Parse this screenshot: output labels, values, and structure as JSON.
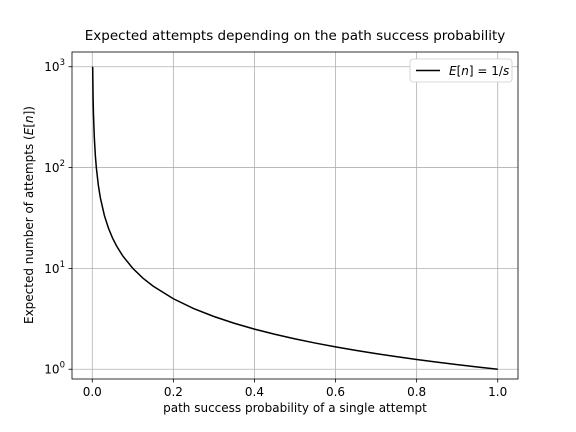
{
  "chart_data": {
    "type": "line",
    "title": "Expected attempts depending on the path success probability",
    "xlabel": "path success probability of a single attempt",
    "ylabel": "Expected number of attempts (E[n])",
    "xlim": [
      -0.05,
      1.05
    ],
    "ylim": [
      0.8,
      1400
    ],
    "yscale": "log",
    "grid": true,
    "legend_position": "upper right",
    "xticks": [
      0.0,
      0.2,
      0.4,
      0.6,
      0.8,
      1.0
    ],
    "xtick_labels": [
      "0.0",
      "0.2",
      "0.4",
      "0.6",
      "0.8",
      "1.0"
    ],
    "yticks": [
      1,
      10,
      100,
      1000
    ],
    "ytick_labels": [
      {
        "base": "10",
        "exp": "0"
      },
      {
        "base": "10",
        "exp": "1"
      },
      {
        "base": "10",
        "exp": "2"
      },
      {
        "base": "10",
        "exp": "3"
      }
    ],
    "series": [
      {
        "name": "E[n] = 1/s",
        "color": "#000000",
        "x": [
          0.001,
          0.002,
          0.003,
          0.005,
          0.0075,
          0.01,
          0.015,
          0.02,
          0.03,
          0.04,
          0.05,
          0.06,
          0.075,
          0.1,
          0.125,
          0.15,
          0.2,
          0.25,
          0.3,
          0.35,
          0.4,
          0.45,
          0.5,
          0.55,
          0.6,
          0.65,
          0.7,
          0.75,
          0.8,
          0.85,
          0.9,
          0.95,
          1.0
        ],
        "y": [
          1000,
          500,
          333.3,
          200,
          133.3,
          100,
          66.67,
          50,
          33.33,
          25,
          20,
          16.67,
          13.33,
          10,
          8,
          6.667,
          5,
          4,
          3.333,
          2.857,
          2.5,
          2.222,
          2,
          1.818,
          1.667,
          1.538,
          1.429,
          1.333,
          1.25,
          1.176,
          1.111,
          1.053,
          1
        ]
      }
    ]
  }
}
